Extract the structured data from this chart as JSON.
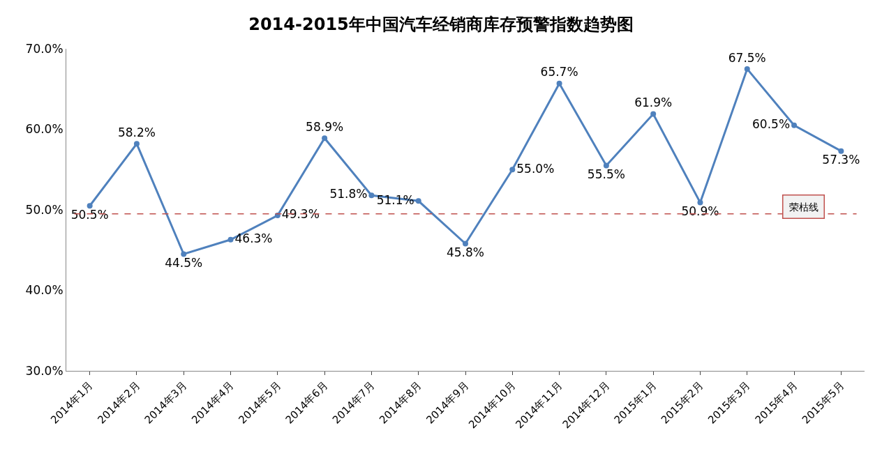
{
  "chart_data": {
    "type": "line",
    "title": "2014-2015年中国汽车经销商库存预警指数趋势图",
    "categories": [
      "2014年1月",
      "2014年2月",
      "2014年3月",
      "2014年4月",
      "2014年5月",
      "2014年6月",
      "2014年7月",
      "2014年8月",
      "2014年9月",
      "2014年10月",
      "2014年11月",
      "2014年12月",
      "2015年1月",
      "2015年2月",
      "2015年3月",
      "2015年4月",
      "2015年5月"
    ],
    "series": [
      {
        "color": "#4f81bd",
        "values": [
          50.5,
          58.2,
          44.5,
          46.3,
          49.3,
          58.9,
          51.8,
          51.1,
          45.8,
          55.0,
          65.7,
          55.5,
          61.9,
          50.9,
          67.5,
          60.5,
          57.3
        ],
        "value_labels": [
          "50.5%",
          "58.2%",
          "44.5%",
          "46.3%",
          "49.3%",
          "58.9%",
          "51.8%",
          "51.1%",
          "45.8%",
          "55.0%",
          "65.7%",
          "55.5%",
          "61.9%",
          "50.9%",
          "67.5%",
          "60.5%",
          "57.3%"
        ]
      }
    ],
    "ylim": [
      30,
      70
    ],
    "yticks": [
      {
        "value": 30,
        "label": "30.0%"
      },
      {
        "value": 40,
        "label": "40.0%"
      },
      {
        "value": 50,
        "label": "50.0%"
      },
      {
        "value": 60,
        "label": "60.0%"
      },
      {
        "value": 70,
        "label": "70.0%"
      }
    ],
    "ref_lines": [
      {
        "axis": "y",
        "value": 49.5,
        "label": "荣枯线",
        "color": "#c0504d",
        "line_style": "dashed"
      }
    ],
    "marker": "circle",
    "line_style": "solid"
  }
}
